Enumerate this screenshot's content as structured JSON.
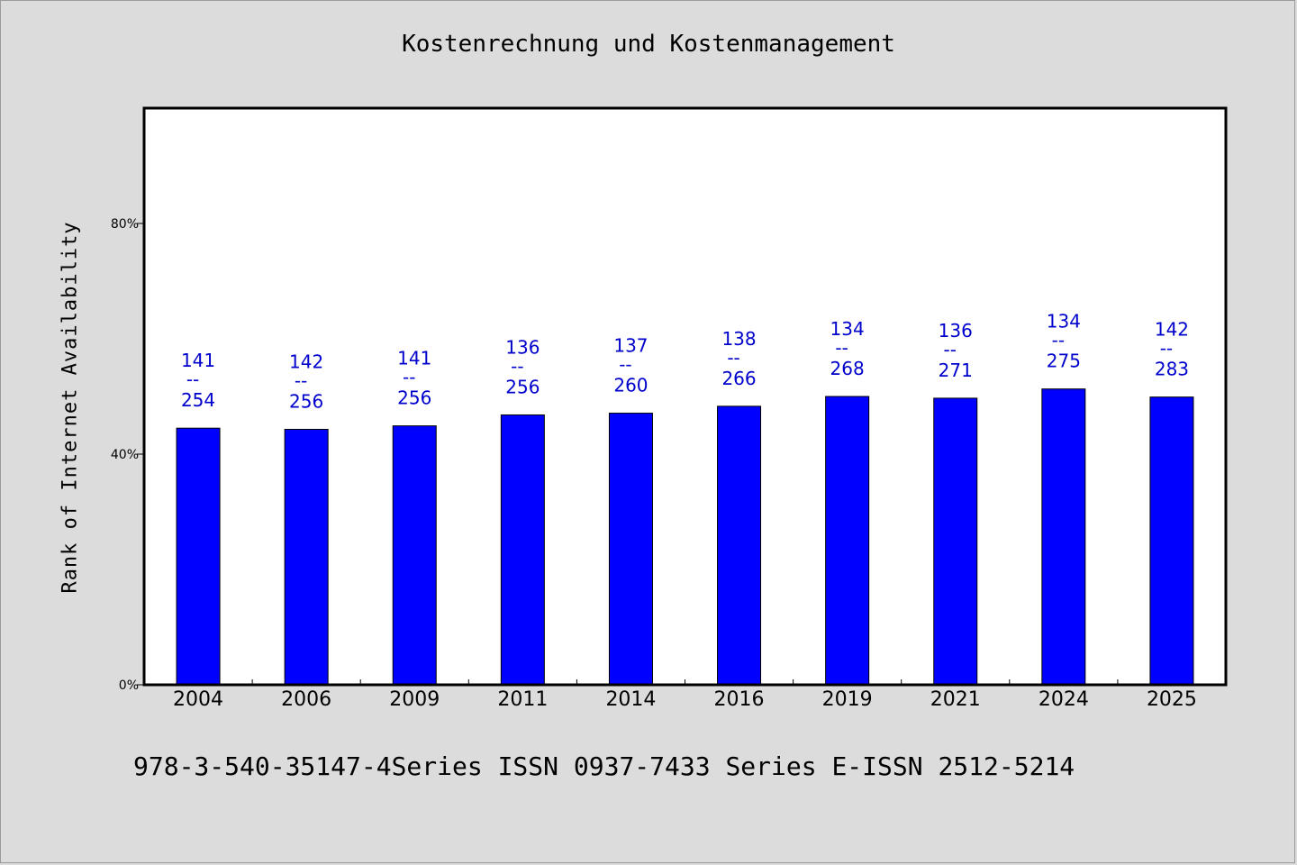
{
  "page": {
    "title": "Kostenrechnung und Kostenmanagement",
    "footer": "978-3-540-35147-4Series ISSN 0937-7433 Series E-ISSN 2512-5214"
  },
  "colors": {
    "background": "#dcdcdc",
    "plot_background": "#ffffff",
    "bar": "#0000ff",
    "data_label": "#0000cc"
  },
  "chart_data": {
    "type": "bar",
    "title": "Kostenrechnung und Kostenmanagement",
    "xlabel": "",
    "ylabel": "Rank of Internet Availability",
    "categories": [
      "2004",
      "2006",
      "2009",
      "2011",
      "2014",
      "2016",
      "2019",
      "2021",
      "2024",
      "2025"
    ],
    "values": [
      44.5,
      44.3,
      44.9,
      46.8,
      47.1,
      48.3,
      50.0,
      49.7,
      51.3,
      49.9
    ],
    "value_unit": "%",
    "labels": [
      {
        "top": "141",
        "sep": "--",
        "bottom": "254"
      },
      {
        "top": "142",
        "sep": "--",
        "bottom": "256"
      },
      {
        "top": "141",
        "sep": "--",
        "bottom": "256"
      },
      {
        "top": "136",
        "sep": "--",
        "bottom": "256"
      },
      {
        "top": "137",
        "sep": "--",
        "bottom": "260"
      },
      {
        "top": "138",
        "sep": "--",
        "bottom": "266"
      },
      {
        "top": "134",
        "sep": "--",
        "bottom": "268"
      },
      {
        "top": "136",
        "sep": "--",
        "bottom": "271"
      },
      {
        "top": "134",
        "sep": "--",
        "bottom": "275"
      },
      {
        "top": "142",
        "sep": "--",
        "bottom": "283"
      }
    ],
    "ylim": [
      0,
      100
    ],
    "yticks": [
      0,
      40,
      80
    ],
    "ytick_labels": [
      "0%",
      "40%",
      "80%"
    ],
    "grid": false,
    "legend": "none"
  }
}
